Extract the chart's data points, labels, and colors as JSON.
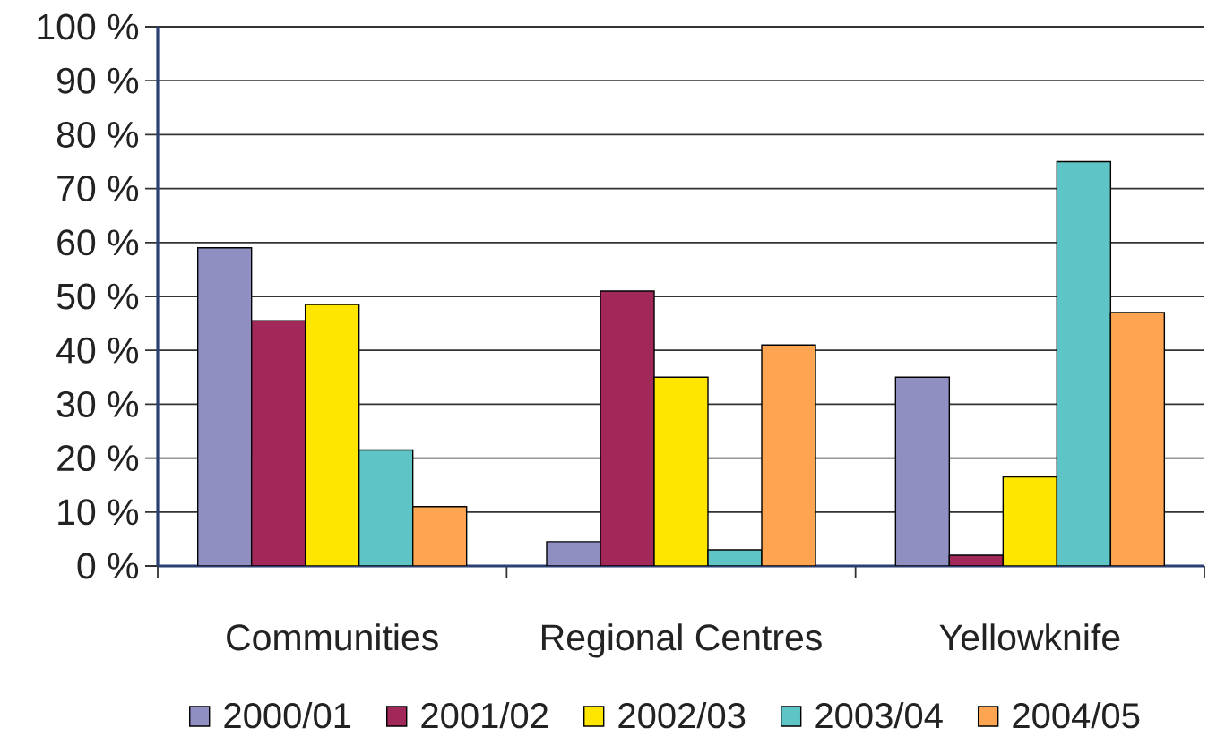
{
  "chart_data": {
    "type": "bar",
    "categories": [
      "Communities",
      "Regional Centres",
      "Yellowknife"
    ],
    "series": [
      {
        "name": "2000/01",
        "color": "#8f8fc2",
        "values": [
          59,
          4.5,
          35
        ]
      },
      {
        "name": "2001/02",
        "color": "#a3285a",
        "values": [
          45.5,
          51,
          2
        ]
      },
      {
        "name": "2002/03",
        "color": "#ffe600",
        "values": [
          48.5,
          35,
          16.5
        ]
      },
      {
        "name": "2003/04",
        "color": "#5ec4c6",
        "values": [
          21.5,
          3,
          75
        ]
      },
      {
        "name": "2004/05",
        "color": "#ffa552",
        "values": [
          11,
          41,
          47
        ]
      }
    ],
    "ylim": [
      0,
      100
    ],
    "yticks": [
      {
        "value": 0,
        "label": "0 %"
      },
      {
        "value": 10,
        "label": "10 %"
      },
      {
        "value": 20,
        "label": "20 %"
      },
      {
        "value": 30,
        "label": "30 %"
      },
      {
        "value": 40,
        "label": "40 %"
      },
      {
        "value": 50,
        "label": "50 %"
      },
      {
        "value": 60,
        "label": "60 %"
      },
      {
        "value": 70,
        "label": "70 %"
      },
      {
        "value": 80,
        "label": "80 %"
      },
      {
        "value": 90,
        "label": "90 %"
      },
      {
        "value": 100,
        "label": "100 %"
      }
    ],
    "grid": "y",
    "legend": "bottom"
  }
}
